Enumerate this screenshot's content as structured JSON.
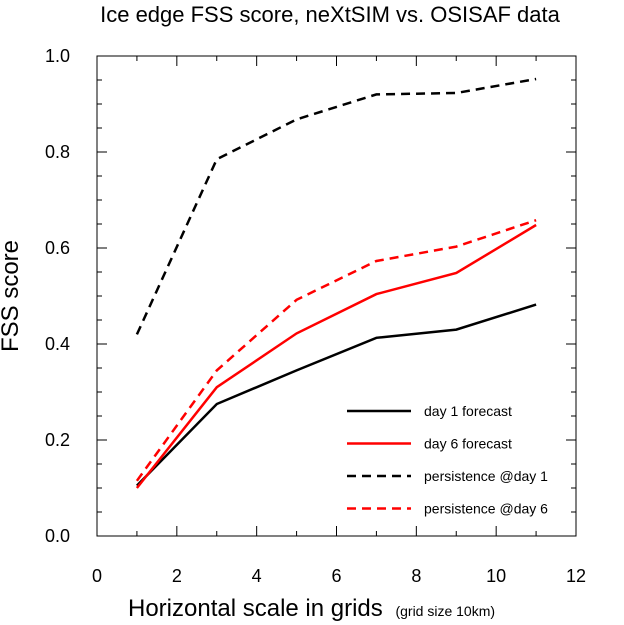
{
  "chart_data": {
    "type": "line",
    "title": "Ice edge FSS score, neXtSIM vs. OSISAF data",
    "xlabel": "Horizontal scale in grids",
    "xlabel_note": "(grid size 10km)",
    "ylabel": "FSS score",
    "xlim": [
      0,
      12
    ],
    "ylim": [
      0.0,
      1.0
    ],
    "xticks": [
      0,
      2,
      4,
      6,
      8,
      10,
      12
    ],
    "xtick_labels": [
      "0",
      "2",
      "4",
      "6",
      "8",
      "10",
      "12"
    ],
    "yticks": [
      0.0,
      0.2,
      0.4,
      0.6,
      0.8,
      1.0
    ],
    "ytick_labels": [
      "0.0",
      "0.2",
      "0.4",
      "0.6",
      "0.8",
      "1.0"
    ],
    "grid": false,
    "legend_position": "bottom-right",
    "x": [
      1,
      3,
      5,
      7,
      9,
      11
    ],
    "series": [
      {
        "name": "day 1 forecast",
        "color": "#000000",
        "dash": "solid",
        "values": [
          0.105,
          0.275,
          0.345,
          0.413,
          0.43,
          0.482
        ]
      },
      {
        "name": "day 6 forecast",
        "color": "#ff0000",
        "dash": "solid",
        "values": [
          0.1,
          0.31,
          0.422,
          0.504,
          0.548,
          0.648
        ]
      },
      {
        "name": "persistence @day 1",
        "color": "#000000",
        "dash": "dashed",
        "values": [
          0.42,
          0.785,
          0.868,
          0.92,
          0.923,
          0.952
        ]
      },
      {
        "name": "persistence @day 6",
        "color": "#ff0000",
        "dash": "dashed",
        "values": [
          0.115,
          0.345,
          0.492,
          0.573,
          0.603,
          0.658
        ]
      }
    ]
  }
}
